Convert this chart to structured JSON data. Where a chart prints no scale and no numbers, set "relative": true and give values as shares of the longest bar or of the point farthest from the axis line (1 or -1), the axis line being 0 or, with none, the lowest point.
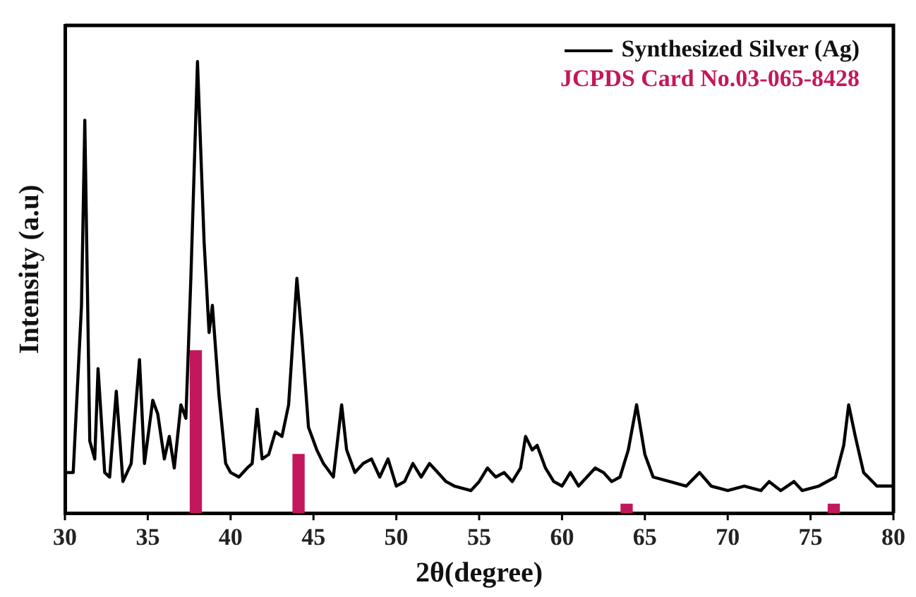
{
  "chart_data": {
    "type": "line",
    "xlabel": "2θ(degree)",
    "ylabel": "Intensity (a.u)",
    "relative": true,
    "grid": false,
    "legend": "top right",
    "marker": "none",
    "line_style": "solid",
    "xlim": [
      30,
      80
    ],
    "xticks": [
      30,
      35,
      40,
      45,
      50,
      55,
      60,
      65,
      70,
      75,
      80
    ],
    "series": [
      {
        "name": "Synthesized Silver (Ag)",
        "color": "#000000",
        "x": [
          30,
          30.5,
          31,
          31.2,
          31.5,
          31.8,
          32,
          32.4,
          32.7,
          33.1,
          33.5,
          34,
          34.5,
          34.8,
          35.3,
          35.6,
          36,
          36.3,
          36.6,
          37,
          37.3,
          37.6,
          38,
          38.4,
          38.7,
          38.9,
          39.3,
          39.7,
          40,
          40.5,
          41,
          41.3,
          41.6,
          41.9,
          42.3,
          42.7,
          43.1,
          43.5,
          44,
          44.3,
          44.7,
          45.2,
          45.6,
          46.2,
          46.7,
          47,
          47.5,
          48,
          48.5,
          49,
          49.5,
          50,
          50.5,
          51,
          51.5,
          52,
          52.5,
          53,
          53.5,
          54.5,
          55,
          55.5,
          56,
          56.5,
          57,
          57.5,
          57.8,
          58.2,
          58.5,
          59,
          59.5,
          60,
          60.5,
          61,
          61.5,
          62,
          62.5,
          63,
          63.5,
          64,
          64.5,
          65,
          65.5,
          66.5,
          67.5,
          68.3,
          69,
          70,
          71,
          72,
          72.5,
          73.2,
          74,
          74.5,
          75.5,
          76.5,
          77,
          77.3,
          77.7,
          78.2,
          79,
          80
        ],
        "values": [
          0.09,
          0.09,
          0.46,
          0.87,
          0.16,
          0.12,
          0.32,
          0.09,
          0.08,
          0.27,
          0.07,
          0.11,
          0.34,
          0.11,
          0.25,
          0.22,
          0.12,
          0.17,
          0.1,
          0.24,
          0.21,
          0.52,
          1,
          0.6,
          0.4,
          0.46,
          0.26,
          0.11,
          0.09,
          0.08,
          0.1,
          0.11,
          0.23,
          0.12,
          0.13,
          0.18,
          0.17,
          0.24,
          0.52,
          0.39,
          0.19,
          0.14,
          0.11,
          0.08,
          0.24,
          0.14,
          0.09,
          0.11,
          0.12,
          0.08,
          0.12,
          0.06,
          0.07,
          0.11,
          0.08,
          0.11,
          0.09,
          0.07,
          0.06,
          0.05,
          0.07,
          0.1,
          0.08,
          0.09,
          0.07,
          0.1,
          0.17,
          0.14,
          0.15,
          0.1,
          0.07,
          0.06,
          0.09,
          0.06,
          0.08,
          0.1,
          0.09,
          0.07,
          0.08,
          0.14,
          0.24,
          0.13,
          0.08,
          0.07,
          0.06,
          0.09,
          0.06,
          0.05,
          0.06,
          0.05,
          0.07,
          0.05,
          0.07,
          0.05,
          0.06,
          0.08,
          0.15,
          0.24,
          0.17,
          0.09,
          0.06,
          0.06
        ]
      },
      {
        "name": "JCPDS Card No.03-065-8428",
        "type": "bar",
        "color": "#c2185b",
        "x": [
          37.9,
          44.1,
          63.9,
          76.4
        ],
        "values": [
          0.36,
          0.13,
          0.02,
          0.02
        ]
      }
    ]
  }
}
